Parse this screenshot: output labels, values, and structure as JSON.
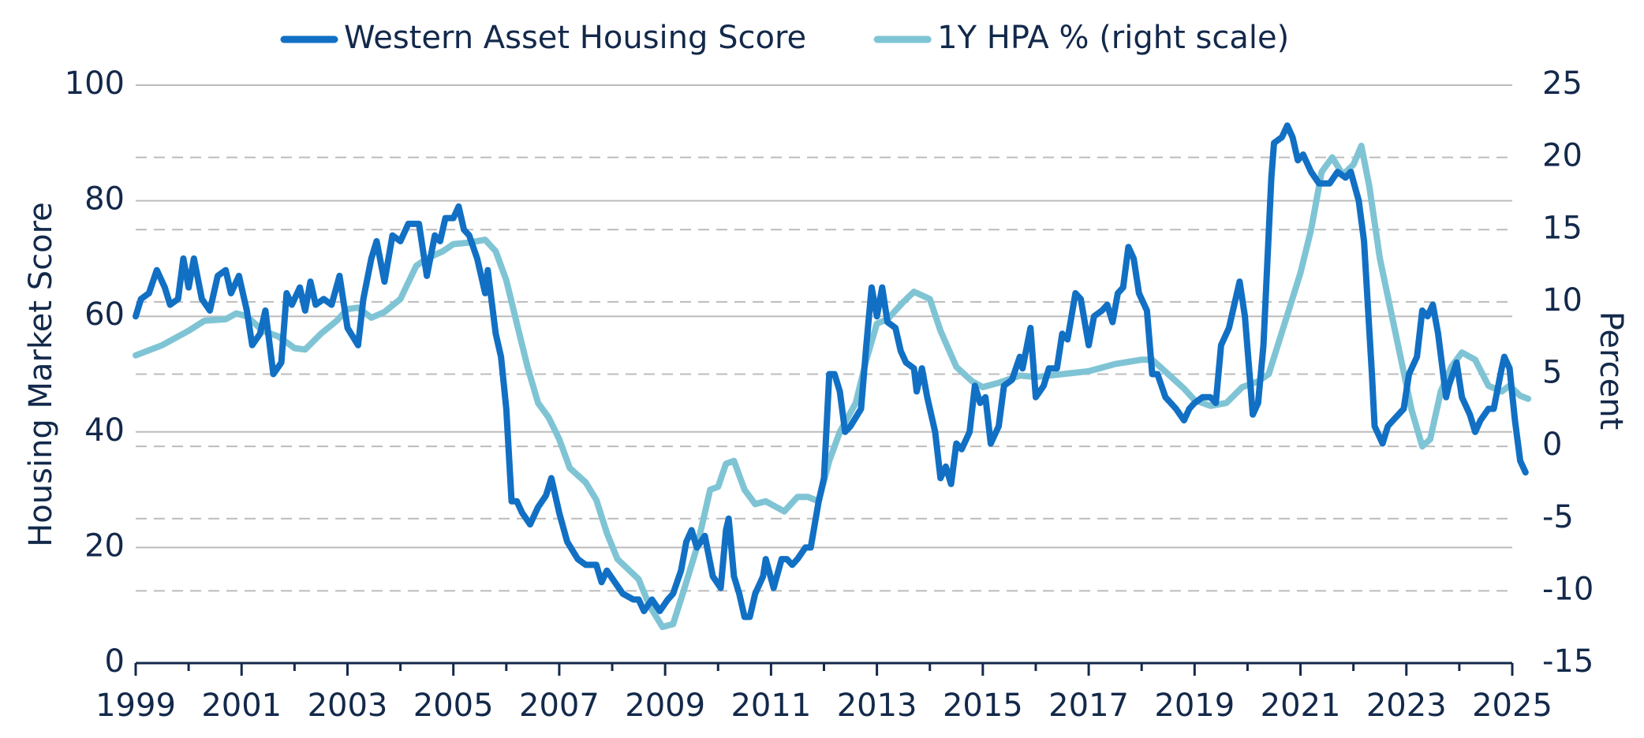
{
  "chart_data": {
    "type": "line",
    "ylabel": "Housing Market Score",
    "y2label": "Percent",
    "xlim": [
      1999,
      2025
    ],
    "xticks": [
      1999,
      2001,
      2003,
      2005,
      2007,
      2009,
      2011,
      2013,
      2015,
      2017,
      2019,
      2021,
      2023,
      2025
    ],
    "ylim": [
      0,
      100
    ],
    "yticks": [
      0,
      20,
      40,
      60,
      80,
      100
    ],
    "y2lim": [
      -15,
      25
    ],
    "y2ticks": [
      -15,
      -10,
      -5,
      0,
      5,
      10,
      15,
      20,
      25
    ],
    "grid": true,
    "legend": "top",
    "series": [
      {
        "name": "Western Asset Housing Score",
        "color": "#1170c4",
        "axis": "y",
        "x": [
          1999.0,
          1999.1,
          1999.25,
          1999.4,
          1999.55,
          1999.65,
          1999.8,
          1999.9,
          2000.0,
          2000.1,
          2000.25,
          2000.4,
          2000.55,
          2000.7,
          2000.8,
          2000.95,
          2001.1,
          2001.2,
          2001.35,
          2001.45,
          2001.6,
          2001.75,
          2001.85,
          2001.95,
          2002.1,
          2002.2,
          2002.3,
          2002.4,
          2002.55,
          2002.7,
          2002.85,
          2003.0,
          2003.2,
          2003.3,
          2003.45,
          2003.55,
          2003.7,
          2003.85,
          2004.0,
          2004.15,
          2004.35,
          2004.5,
          2004.65,
          2004.75,
          2004.85,
          2005.0,
          2005.1,
          2005.2,
          2005.3,
          2005.45,
          2005.6,
          2005.65,
          2005.8,
          2005.9,
          2006.0,
          2006.1,
          2006.2,
          2006.3,
          2006.45,
          2006.6,
          2006.75,
          2006.85,
          2007.0,
          2007.15,
          2007.35,
          2007.5,
          2007.7,
          2007.8,
          2007.9,
          2008.05,
          2008.2,
          2008.4,
          2008.5,
          2008.6,
          2008.75,
          2008.9,
          2009.05,
          2009.15,
          2009.3,
          2009.4,
          2009.5,
          2009.6,
          2009.75,
          2009.9,
          2010.05,
          2010.15,
          2010.2,
          2010.3,
          2010.4,
          2010.5,
          2010.6,
          2010.7,
          2010.85,
          2010.9,
          2011.05,
          2011.2,
          2011.3,
          2011.4,
          2011.5,
          2011.65,
          2011.75,
          2011.9,
          2012.0,
          2012.1,
          2012.2,
          2012.3,
          2012.4,
          2012.5,
          2012.7,
          2012.8,
          2012.9,
          2013.0,
          2013.1,
          2013.2,
          2013.35,
          2013.45,
          2013.55,
          2013.7,
          2013.75,
          2013.85,
          2013.95,
          2014.1,
          2014.2,
          2014.3,
          2014.4,
          2014.5,
          2014.6,
          2014.75,
          2014.85,
          2014.95,
          2015.05,
          2015.15,
          2015.3,
          2015.4,
          2015.55,
          2015.7,
          2015.75,
          2015.9,
          2016.0,
          2016.15,
          2016.25,
          2016.4,
          2016.5,
          2016.6,
          2016.75,
          2016.85,
          2017.0,
          2017.1,
          2017.25,
          2017.35,
          2017.45,
          2017.55,
          2017.65,
          2017.75,
          2017.85,
          2017.95,
          2018.1,
          2018.2,
          2018.3,
          2018.45,
          2018.55,
          2018.65,
          2018.8,
          2018.9,
          2019.0,
          2019.15,
          2019.3,
          2019.4,
          2019.5,
          2019.65,
          2019.75,
          2019.85,
          2019.95,
          2020.1,
          2020.2,
          2020.3,
          2020.45,
          2020.5,
          2020.65,
          2020.75,
          2020.85,
          2020.95,
          2021.05,
          2021.2,
          2021.35,
          2021.55,
          2021.7,
          2021.85,
          2021.95,
          2022.1,
          2022.2,
          2022.35,
          2022.4,
          2022.55,
          2022.65,
          2022.75,
          2022.95,
          2023.05,
          2023.2,
          2023.3,
          2023.4,
          2023.5,
          2023.6,
          2023.75,
          2023.8,
          2023.95,
          2024.05,
          2024.2,
          2024.3,
          2024.4,
          2024.55,
          2024.65,
          2024.8,
          2024.85,
          2024.95,
          2025.05,
          2025.15,
          2025.25
        ],
        "values": [
          60,
          63,
          64,
          68,
          65,
          62,
          63,
          70,
          65,
          70,
          63,
          61,
          67,
          68,
          64,
          67,
          61,
          55,
          57,
          61,
          50,
          52,
          64,
          62,
          65,
          61,
          66,
          62,
          63,
          62,
          67,
          58,
          55,
          63,
          70,
          73,
          66,
          74,
          73,
          76,
          76,
          67,
          74,
          73,
          77,
          77,
          79,
          75,
          74,
          70,
          64,
          68,
          57,
          53,
          44,
          28,
          28,
          26,
          24,
          27,
          29,
          32,
          26,
          21,
          18,
          17,
          17,
          14,
          16,
          14,
          12,
          11,
          11,
          9,
          11,
          9,
          11,
          12,
          16,
          21,
          23,
          20,
          22,
          15,
          13,
          23,
          25,
          15,
          12,
          8,
          8,
          12,
          15,
          18,
          13,
          18,
          18,
          17,
          18,
          20,
          20,
          28,
          32,
          50,
          50,
          47,
          40,
          41,
          44,
          55,
          65,
          60,
          65,
          59,
          58,
          54,
          52,
          51,
          47,
          51,
          46,
          40,
          32,
          34,
          31,
          38,
          37,
          40,
          48,
          45,
          46,
          38,
          41,
          48,
          49,
          53,
          51,
          58,
          46,
          48,
          51,
          51,
          57,
          56,
          64,
          63,
          55,
          60,
          61,
          62,
          59,
          64,
          65,
          72,
          70,
          64,
          61,
          50,
          50,
          46,
          45,
          44,
          42,
          44,
          45,
          46,
          46,
          45,
          55,
          58,
          62,
          66,
          60,
          43,
          45,
          55,
          84,
          90,
          91,
          93,
          91,
          87,
          88,
          85,
          83,
          83,
          85,
          84,
          85,
          80,
          73,
          50,
          41,
          38,
          41,
          42,
          44,
          50,
          53,
          61,
          60,
          62,
          57,
          46,
          48,
          52,
          46,
          43,
          40,
          42,
          44,
          44,
          51,
          53,
          51,
          42,
          35,
          33
        ]
      },
      {
        "name": "1Y HPA % (right scale)",
        "color": "#7fc4d5",
        "axis": "y2",
        "x": [
          1999.0,
          1999.5,
          2000.0,
          2000.3,
          2000.7,
          2000.9,
          2001.1,
          2001.4,
          2001.7,
          2002.0,
          2002.2,
          2002.5,
          2002.8,
          2003.0,
          2003.2,
          2003.45,
          2003.7,
          2004.0,
          2004.3,
          2004.5,
          2004.8,
          2005.0,
          2005.3,
          2005.6,
          2005.8,
          2006.0,
          2006.2,
          2006.4,
          2006.6,
          2006.8,
          2007.0,
          2007.2,
          2007.5,
          2007.7,
          2007.9,
          2008.1,
          2008.3,
          2008.5,
          2008.7,
          2008.95,
          2009.15,
          2009.35,
          2009.6,
          2009.85,
          2010.0,
          2010.15,
          2010.3,
          2010.5,
          2010.7,
          2010.9,
          2011.1,
          2011.25,
          2011.5,
          2011.7,
          2011.9,
          2012.1,
          2012.3,
          2012.6,
          2012.8,
          2013.0,
          2013.2,
          2013.5,
          2013.7,
          2014.0,
          2014.2,
          2014.5,
          2014.8,
          2015.0,
          2015.3,
          2015.7,
          2016.0,
          2016.5,
          2017.0,
          2017.5,
          2018.0,
          2018.2,
          2018.5,
          2018.8,
          2019.0,
          2019.3,
          2019.6,
          2019.9,
          2020.2,
          2020.4,
          2020.7,
          2021.0,
          2021.2,
          2021.4,
          2021.6,
          2021.8,
          2022.0,
          2022.15,
          2022.3,
          2022.5,
          2022.7,
          2022.9,
          2023.1,
          2023.3,
          2023.45,
          2023.65,
          2023.85,
          2024.05,
          2024.3,
          2024.55,
          2024.8,
          2024.95,
          2025.15,
          2025.3
        ],
        "values": [
          6.3,
          7.0,
          8.0,
          8.7,
          8.8,
          9.2,
          9.0,
          8.0,
          7.6,
          6.8,
          6.7,
          7.8,
          8.7,
          9.5,
          9.6,
          8.9,
          9.3,
          10.2,
          12.5,
          13.0,
          13.5,
          14.0,
          14.1,
          14.3,
          13.5,
          11.5,
          8.5,
          5.5,
          3.0,
          2.0,
          0.5,
          -1.5,
          -2.5,
          -3.7,
          -6.0,
          -7.8,
          -8.5,
          -9.2,
          -11.0,
          -12.5,
          -12.3,
          -10.0,
          -7.0,
          -3.0,
          -2.8,
          -1.2,
          -1.0,
          -3.0,
          -4.0,
          -3.8,
          -4.2,
          -4.5,
          -3.5,
          -3.5,
          -3.8,
          -1.0,
          1.0,
          3.0,
          6.0,
          8.5,
          8.8,
          10.0,
          10.7,
          10.2,
          8.0,
          5.5,
          4.5,
          4.1,
          4.4,
          4.9,
          4.8,
          5.0,
          5.2,
          5.7,
          6.0,
          6.0,
          5.0,
          4.0,
          3.2,
          2.8,
          3.0,
          4.1,
          4.5,
          5.0,
          8.5,
          12.0,
          15.0,
          19.0,
          20.0,
          18.8,
          19.5,
          20.8,
          18.0,
          13.0,
          9.5,
          6.0,
          2.5,
          0.0,
          0.5,
          3.8,
          5.5,
          6.5,
          6.0,
          4.2,
          3.8,
          4.2,
          3.5,
          3.3
        ]
      }
    ]
  }
}
